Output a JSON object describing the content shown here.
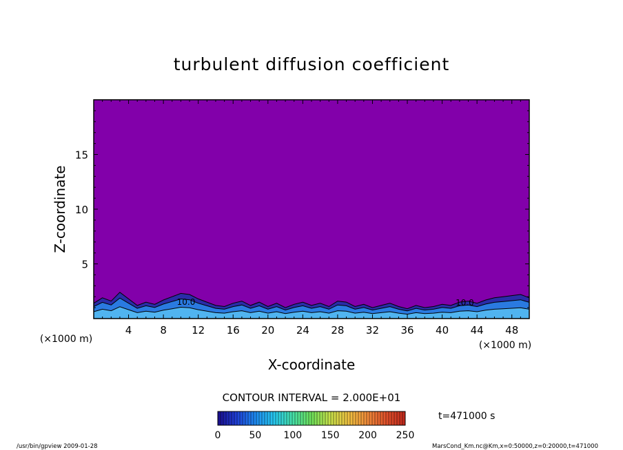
{
  "chart_data": {
    "type": "heatmap",
    "title": "turbulent diffusion coefficient",
    "xlabel": "X-coordinate",
    "ylabel": "Z-coordinate",
    "x_unit_left": "(×1000 m)",
    "x_unit_right": "(×1000 m)",
    "xlim": [
      0,
      50
    ],
    "ylim": [
      0,
      20
    ],
    "x_ticks": [
      4,
      8,
      12,
      16,
      20,
      24,
      28,
      32,
      36,
      40,
      44,
      48
    ],
    "y_ticks": [
      5,
      10,
      15
    ],
    "background_value": 0,
    "boundary_layer_top_km": [
      {
        "x": 0,
        "z": 1.4
      },
      {
        "x": 1,
        "z": 1.9
      },
      {
        "x": 2,
        "z": 1.6
      },
      {
        "x": 3,
        "z": 2.4
      },
      {
        "x": 4,
        "z": 1.8
      },
      {
        "x": 5,
        "z": 1.2
      },
      {
        "x": 6,
        "z": 1.5
      },
      {
        "x": 7,
        "z": 1.3
      },
      {
        "x": 8,
        "z": 1.7
      },
      {
        "x": 9,
        "z": 2.0
      },
      {
        "x": 10,
        "z": 2.3
      },
      {
        "x": 11,
        "z": 2.2
      },
      {
        "x": 12,
        "z": 1.8
      },
      {
        "x": 13,
        "z": 1.5
      },
      {
        "x": 14,
        "z": 1.2
      },
      {
        "x": 15,
        "z": 1.1
      },
      {
        "x": 16,
        "z": 1.4
      },
      {
        "x": 17,
        "z": 1.6
      },
      {
        "x": 18,
        "z": 1.2
      },
      {
        "x": 19,
        "z": 1.5
      },
      {
        "x": 20,
        "z": 1.1
      },
      {
        "x": 21,
        "z": 1.4
      },
      {
        "x": 22,
        "z": 1.0
      },
      {
        "x": 23,
        "z": 1.3
      },
      {
        "x": 24,
        "z": 1.5
      },
      {
        "x": 25,
        "z": 1.2
      },
      {
        "x": 26,
        "z": 1.4
      },
      {
        "x": 27,
        "z": 1.1
      },
      {
        "x": 28,
        "z": 1.6
      },
      {
        "x": 29,
        "z": 1.5
      },
      {
        "x": 30,
        "z": 1.1
      },
      {
        "x": 31,
        "z": 1.3
      },
      {
        "x": 32,
        "z": 1.0
      },
      {
        "x": 33,
        "z": 1.2
      },
      {
        "x": 34,
        "z": 1.4
      },
      {
        "x": 35,
        "z": 1.1
      },
      {
        "x": 36,
        "z": 0.9
      },
      {
        "x": 37,
        "z": 1.2
      },
      {
        "x": 38,
        "z": 1.0
      },
      {
        "x": 39,
        "z": 1.1
      },
      {
        "x": 40,
        "z": 1.3
      },
      {
        "x": 41,
        "z": 1.2
      },
      {
        "x": 42,
        "z": 1.5
      },
      {
        "x": 43,
        "z": 1.6
      },
      {
        "x": 44,
        "z": 1.4
      },
      {
        "x": 45,
        "z": 1.7
      },
      {
        "x": 46,
        "z": 1.9
      },
      {
        "x": 47,
        "z": 2.0
      },
      {
        "x": 48,
        "z": 2.1
      },
      {
        "x": 49,
        "z": 2.2
      },
      {
        "x": 50,
        "z": 1.9
      }
    ],
    "contour_labels": [
      {
        "text": "10.0",
        "x": 10.6,
        "z": 1.5
      },
      {
        "text": "10.0",
        "x": 42.6,
        "z": 1.45
      }
    ],
    "contour_interval_text": "CONTOUR INTERVAL = 2.000E+01",
    "time_text": "t=471000 s",
    "colorbar": {
      "ticks": [
        0,
        50,
        100,
        150,
        200,
        250
      ],
      "range": [
        0,
        250
      ],
      "colors": [
        "#1a0d8c",
        "#1f3fd6",
        "#1e8af0",
        "#27c7ef",
        "#46e0a8",
        "#6fe05a",
        "#c7e04a",
        "#f0c040",
        "#f08a3a",
        "#e0502a",
        "#c0281c"
      ]
    }
  },
  "footer": {
    "left": "/usr/bin/gpview  2009-01-28",
    "right": "MarsCond_Km.nc@Km,x=0:50000,z=0:20000,t=471000"
  },
  "colors": {
    "field": "#8200aa",
    "boundary_dark": "#2a2ca8",
    "boundary_mid": "#2a7ae0",
    "boundary_light": "#50b4f0"
  }
}
